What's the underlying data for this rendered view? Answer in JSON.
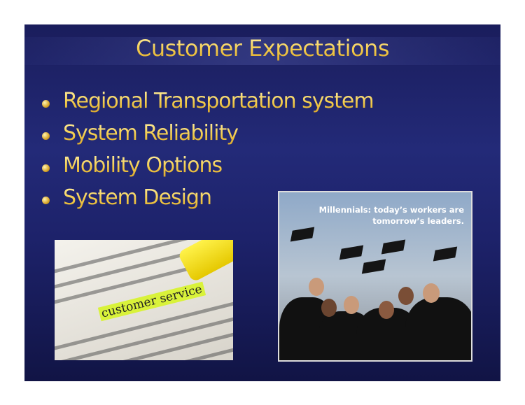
{
  "slide": {
    "title": "Customer Expectations",
    "bullets": [
      "Regional Transportation system",
      "System Reliability",
      "Mobility Options",
      "System Design"
    ],
    "left_image": {
      "highlight": "customer service"
    },
    "right_image": {
      "caption": [
        "Millennials:  today’s workers are",
        "tomorrow’s leaders."
      ]
    }
  }
}
